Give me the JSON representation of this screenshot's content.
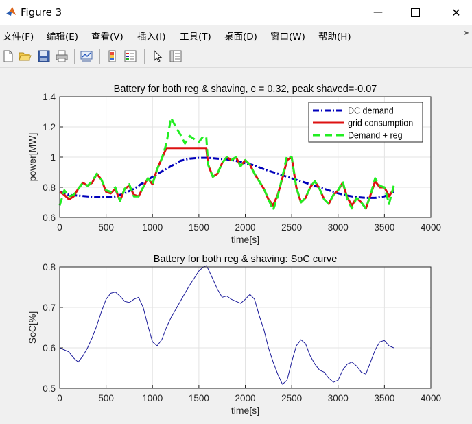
{
  "window": {
    "title": "Figure 3",
    "minimize_icon": "minimize-icon",
    "maximize_icon": "maximize-icon",
    "close_icon": "close-icon"
  },
  "menu": {
    "items": [
      "文件(F)",
      "编辑(E)",
      "查看(V)",
      "插入(I)",
      "工具(T)",
      "桌面(D)",
      "窗口(W)",
      "帮助(H)"
    ]
  },
  "toolbar": {
    "icons": [
      "new-figure-icon",
      "open-file-icon",
      "save-icon",
      "print-icon",
      "link-plot-icon",
      "insert-colorbar-icon",
      "insert-legend-icon",
      "pointer-icon",
      "property-inspector-icon"
    ]
  },
  "colors": {
    "dc_demand": "#0000bb",
    "grid_consumption": "#dd1111",
    "demand_reg": "#22ee22",
    "soc": "#1a1a99"
  },
  "chart_data": [
    {
      "type": "line",
      "title": "Battery for both reg & shaving, c = 0.32, peak shaved=-0.07",
      "xlabel": "time[s]",
      "ylabel": "power[MW]",
      "xlim": [
        0,
        4000
      ],
      "ylim": [
        0.6,
        1.4
      ],
      "xticks": [
        "0",
        "500",
        "1000",
        "1500",
        "2000",
        "2500",
        "3000",
        "3500",
        "4000"
      ],
      "yticks": [
        "0.6",
        "0.8",
        "1",
        "1.2",
        "1.4"
      ],
      "grid": true,
      "legend_position": "top-right",
      "series": [
        {
          "name": "DC demand",
          "style": "dash-dot",
          "x": [
            0,
            100,
            200,
            300,
            400,
            500,
            600,
            700,
            800,
            900,
            1000,
            1100,
            1200,
            1300,
            1400,
            1500,
            1600,
            1700,
            1800,
            1900,
            2000,
            2100,
            2200,
            2300,
            2400,
            2500,
            2600,
            2700,
            2800,
            2900,
            3000,
            3100,
            3200,
            3300,
            3400,
            3500,
            3600
          ],
          "y": [
            0.77,
            0.75,
            0.745,
            0.74,
            0.735,
            0.735,
            0.74,
            0.76,
            0.79,
            0.83,
            0.87,
            0.905,
            0.94,
            0.975,
            0.99,
            0.995,
            0.995,
            0.99,
            0.985,
            0.975,
            0.96,
            0.945,
            0.92,
            0.9,
            0.88,
            0.86,
            0.84,
            0.82,
            0.8,
            0.78,
            0.76,
            0.745,
            0.735,
            0.73,
            0.73,
            0.74,
            0.77
          ]
        },
        {
          "name": "grid consumption",
          "style": "solid",
          "x": [
            0,
            50,
            100,
            150,
            200,
            250,
            300,
            350,
            400,
            450,
            500,
            550,
            600,
            650,
            700,
            750,
            800,
            850,
            900,
            950,
            1000,
            1050,
            1100,
            1150,
            1200,
            1250,
            1300,
            1350,
            1400,
            1450,
            1500,
            1550,
            1580,
            1600,
            1650,
            1700,
            1750,
            1800,
            1850,
            1900,
            1950,
            2000,
            2050,
            2100,
            2150,
            2200,
            2250,
            2300,
            2350,
            2400,
            2450,
            2500,
            2550,
            2600,
            2650,
            2700,
            2750,
            2800,
            2850,
            2900,
            2950,
            3000,
            3050,
            3100,
            3150,
            3200,
            3250,
            3300,
            3350,
            3400,
            3450,
            3500,
            3550,
            3600
          ],
          "y": [
            0.77,
            0.75,
            0.72,
            0.74,
            0.79,
            0.83,
            0.81,
            0.83,
            0.89,
            0.85,
            0.77,
            0.76,
            0.79,
            0.71,
            0.79,
            0.81,
            0.75,
            0.74,
            0.8,
            0.86,
            0.82,
            0.92,
            0.99,
            1.06,
            1.06,
            1.06,
            1.06,
            1.06,
            1.06,
            1.06,
            1.06,
            1.06,
            1.06,
            0.95,
            0.87,
            0.89,
            0.96,
            1.0,
            0.98,
            1.0,
            0.94,
            0.98,
            0.95,
            0.89,
            0.84,
            0.79,
            0.72,
            0.68,
            0.75,
            0.86,
            0.98,
            1.0,
            0.8,
            0.7,
            0.73,
            0.8,
            0.84,
            0.79,
            0.72,
            0.69,
            0.75,
            0.78,
            0.83,
            0.73,
            0.68,
            0.73,
            0.7,
            0.66,
            0.75,
            0.84,
            0.8,
            0.8,
            0.74,
            0.79
          ]
        },
        {
          "name": "Demand + reg",
          "style": "dashed",
          "x": [
            0,
            50,
            100,
            150,
            200,
            250,
            300,
            350,
            400,
            450,
            500,
            550,
            600,
            650,
            700,
            750,
            800,
            850,
            900,
            950,
            1000,
            1050,
            1100,
            1150,
            1200,
            1250,
            1300,
            1350,
            1400,
            1450,
            1500,
            1550,
            1580,
            1600,
            1650,
            1700,
            1750,
            1800,
            1850,
            1900,
            1950,
            2000,
            2050,
            2100,
            2150,
            2200,
            2250,
            2300,
            2350,
            2400,
            2450,
            2500,
            2550,
            2600,
            2650,
            2700,
            2750,
            2800,
            2850,
            2900,
            2950,
            3000,
            3050,
            3100,
            3150,
            3200,
            3250,
            3300,
            3350,
            3400,
            3450,
            3500,
            3550,
            3600
          ],
          "y": [
            0.68,
            0.78,
            0.74,
            0.75,
            0.79,
            0.83,
            0.81,
            0.84,
            0.89,
            0.85,
            0.78,
            0.77,
            0.8,
            0.71,
            0.79,
            0.82,
            0.74,
            0.74,
            0.8,
            0.86,
            0.82,
            0.92,
            0.99,
            1.09,
            1.26,
            1.2,
            1.15,
            1.09,
            1.14,
            1.12,
            1.1,
            1.14,
            1.13,
            0.95,
            0.87,
            0.89,
            0.96,
            1.0,
            0.98,
            1.0,
            0.94,
            0.98,
            0.95,
            0.89,
            0.84,
            0.79,
            0.72,
            0.65,
            0.74,
            0.87,
            1.01,
            1.0,
            0.8,
            0.7,
            0.73,
            0.8,
            0.84,
            0.79,
            0.72,
            0.69,
            0.75,
            0.78,
            0.84,
            0.72,
            0.66,
            0.73,
            0.7,
            0.66,
            0.75,
            0.86,
            0.81,
            0.8,
            0.69,
            0.81
          ]
        }
      ]
    },
    {
      "type": "line",
      "title": "Battery for both reg & shaving: SoC curve",
      "xlabel": "time[s]",
      "ylabel": "SoC[%]",
      "xlim": [
        0,
        4000
      ],
      "ylim": [
        0.5,
        0.8
      ],
      "xticks": [
        "0",
        "500",
        "1000",
        "1500",
        "2000",
        "2500",
        "3000",
        "3500",
        "4000"
      ],
      "yticks": [
        "0.5",
        "0.6",
        "0.7",
        "0.8"
      ],
      "grid": true,
      "series": [
        {
          "x": [
            0,
            50,
            100,
            150,
            200,
            250,
            300,
            350,
            400,
            450,
            500,
            550,
            600,
            650,
            700,
            750,
            800,
            850,
            900,
            950,
            1000,
            1050,
            1100,
            1150,
            1200,
            1250,
            1300,
            1350,
            1400,
            1450,
            1500,
            1550,
            1580,
            1600,
            1650,
            1700,
            1750,
            1800,
            1850,
            1900,
            1950,
            2000,
            2050,
            2100,
            2150,
            2200,
            2250,
            2300,
            2350,
            2400,
            2450,
            2500,
            2550,
            2600,
            2650,
            2700,
            2750,
            2800,
            2850,
            2900,
            2950,
            3000,
            3050,
            3100,
            3150,
            3200,
            3250,
            3300,
            3350,
            3400,
            3450,
            3500,
            3550,
            3600
          ],
          "y": [
            0.6,
            0.595,
            0.59,
            0.575,
            0.565,
            0.58,
            0.6,
            0.625,
            0.655,
            0.69,
            0.72,
            0.735,
            0.738,
            0.728,
            0.715,
            0.712,
            0.72,
            0.725,
            0.7,
            0.655,
            0.615,
            0.605,
            0.62,
            0.65,
            0.675,
            0.695,
            0.715,
            0.735,
            0.755,
            0.772,
            0.79,
            0.8,
            0.803,
            0.795,
            0.77,
            0.745,
            0.725,
            0.728,
            0.72,
            0.715,
            0.71,
            0.72,
            0.732,
            0.72,
            0.68,
            0.645,
            0.6,
            0.565,
            0.535,
            0.51,
            0.52,
            0.565,
            0.605,
            0.62,
            0.61,
            0.58,
            0.56,
            0.545,
            0.54,
            0.525,
            0.515,
            0.52,
            0.545,
            0.56,
            0.565,
            0.555,
            0.54,
            0.535,
            0.565,
            0.595,
            0.615,
            0.618,
            0.605,
            0.6
          ]
        }
      ]
    }
  ]
}
